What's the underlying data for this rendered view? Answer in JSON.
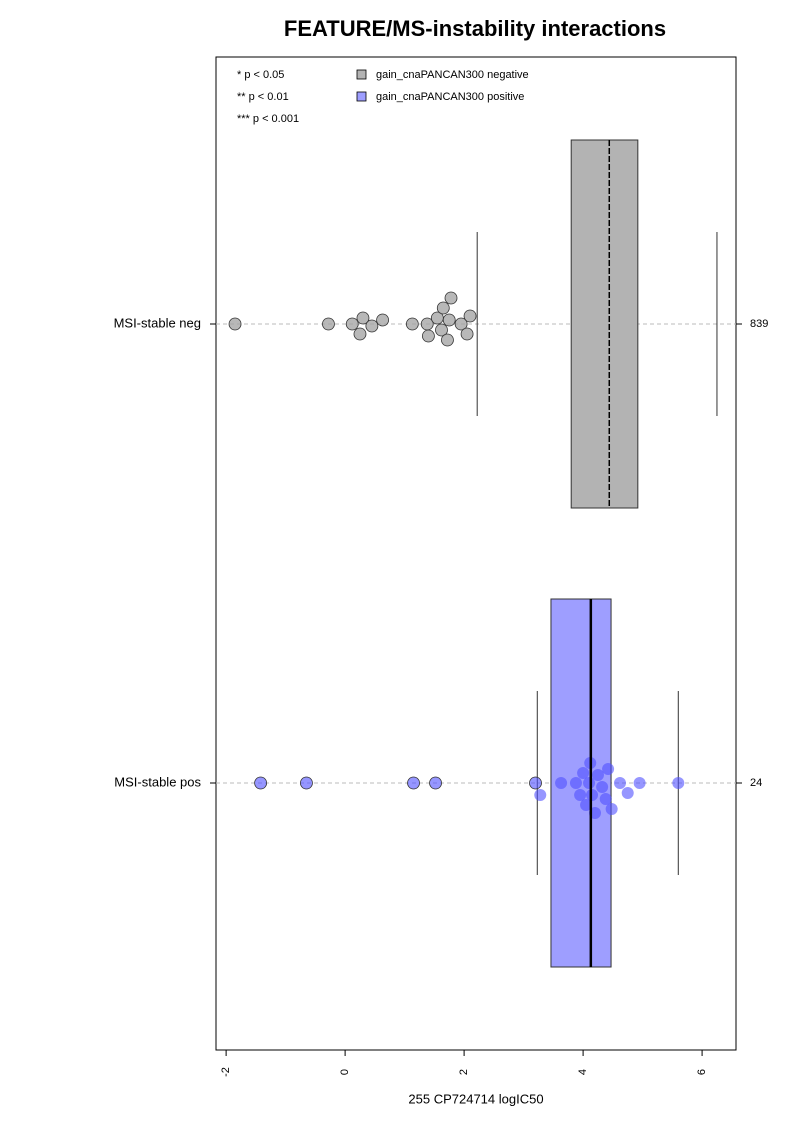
{
  "chart_data": {
    "type": "box",
    "title": "FEATURE/MS-instability interactions",
    "xlabel": "255 CP724714 logIC50",
    "xlim": [
      -2.17,
      6.57
    ],
    "xticks": [
      -2,
      0,
      2,
      4,
      6
    ],
    "categories": [
      "MSI-stable neg",
      "MSI-stable pos"
    ],
    "counts": [
      839,
      24
    ],
    "notes": [
      "* p < 0.05",
      "** p < 0.01",
      "*** p < 0.001"
    ],
    "grid": true,
    "series": [
      {
        "name": "gain_cnaPANCAN300 negative",
        "color": "#b3b3b3",
        "whislo": 2.22,
        "q1": 3.8,
        "med": 4.44,
        "q3": 4.92,
        "whishi": 6.25,
        "points": [
          -1.85,
          -0.28,
          0.12,
          0.25,
          0.3,
          0.45,
          0.63,
          1.13,
          1.38,
          1.4,
          1.55,
          1.62,
          1.65,
          1.72,
          1.75,
          1.78,
          1.95,
          2.05,
          2.1
        ]
      },
      {
        "name": "gain_cnaPANCAN300 positive",
        "color": "#9e9eff",
        "whislo": 3.23,
        "q1": 3.46,
        "med": 4.13,
        "q3": 4.47,
        "whishi": 5.6,
        "points": [
          -1.42,
          -0.65,
          1.15,
          1.52,
          3.2,
          3.28,
          3.63,
          3.88,
          3.95,
          4.0,
          4.05,
          4.1,
          4.12,
          4.15,
          4.2,
          4.25,
          4.32,
          4.38,
          4.42,
          4.48,
          4.62,
          4.75,
          4.95,
          5.6
        ]
      }
    ]
  }
}
